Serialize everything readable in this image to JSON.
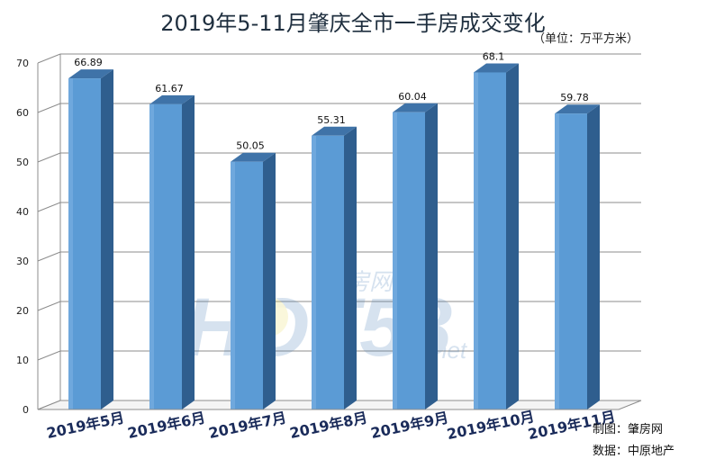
{
  "chart_data": {
    "type": "bar",
    "title": "2019年5-11月肇庆全市一手房成交变化",
    "unit": "（单位：万平方米）",
    "categories": [
      "2019年5月",
      "2019年6月",
      "2019年7月",
      "2019年8月",
      "2019年9月",
      "2019年10月",
      "2019年11月"
    ],
    "values": [
      66.89,
      61.67,
      50.05,
      55.31,
      60.04,
      68.1,
      59.78
    ],
    "value_labels": [
      "66.89",
      "61.67",
      "50.05",
      "55.31",
      "60.04",
      "68.1",
      "59.78"
    ],
    "ylim": [
      0,
      70
    ],
    "yticks": [
      "0",
      "10",
      "20",
      "30",
      "40",
      "50",
      "60",
      "70"
    ],
    "grid": true,
    "bar_color": "#5b9bd5",
    "style": "3d-column"
  },
  "credits": {
    "made_by": "制图：肇房网",
    "source": "数据：中原地产"
  },
  "watermark": {
    "brand": "HOT58",
    "site": "肇房网",
    "suffix": "net"
  }
}
